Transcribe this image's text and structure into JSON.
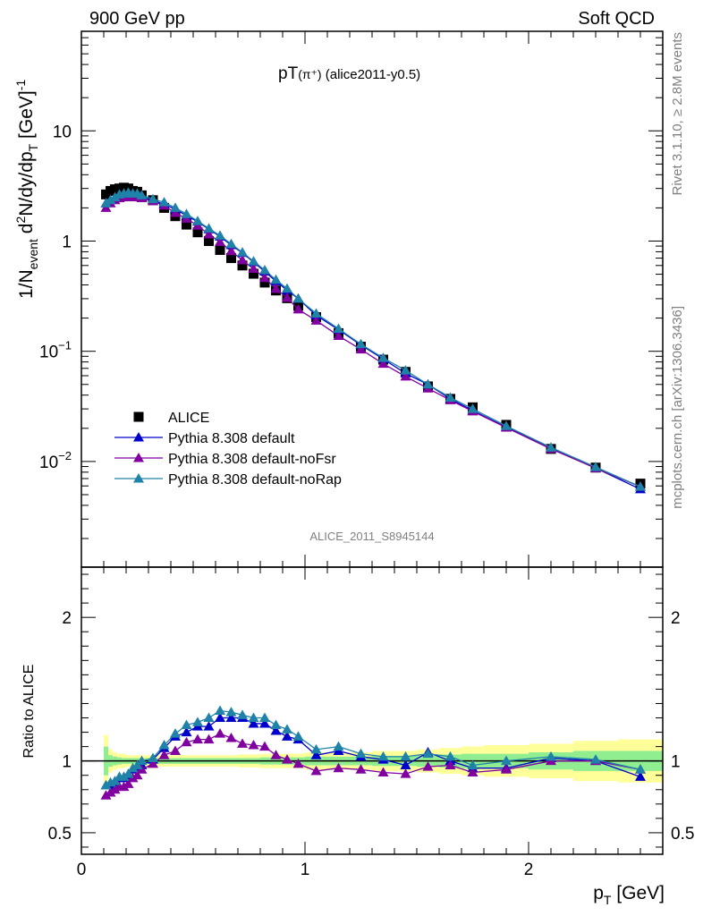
{
  "header": {
    "left": "900 GeV pp",
    "right": "Soft QCD"
  },
  "side": {
    "rivet": "Rivet 3.1.10, ≥ 2.8M events",
    "mcplots": "mcplots.cern.ch [arXiv:1306.3436]"
  },
  "analysis_tag": "ALICE_2011_S8945144",
  "chart_data": [
    {
      "type": "line",
      "panel": "main",
      "title": "pT(π⁺) (alice2011-y0.5)",
      "title_main": "pT",
      "title_sub": "(π⁺)",
      "title_tail": " (alice2011-y0.5)",
      "ylabel": "1/N_event d²N/dy/dp_T [GeV]⁻¹",
      "ylabel_parts": {
        "a": "1/N",
        "sub": "event",
        "b": " d",
        "sup2": "2",
        "c": "N/dy/dp",
        "subT": "T",
        "d": " [GeV]",
        "supm1": "-1"
      },
      "xlabel": "p_T [GeV]",
      "xlabel_parts": {
        "a": "p",
        "sub": "T",
        "b": " [GeV]"
      },
      "yscale": "log",
      "xlim": [
        0,
        2.6
      ],
      "ylim": [
        0.0011,
        80
      ],
      "y_ticks": [
        {
          "value": 0.01,
          "base": "10",
          "exp": "−2"
        },
        {
          "value": 0.1,
          "base": "10",
          "exp": "−1"
        },
        {
          "value": 1,
          "base": "1",
          "exp": ""
        },
        {
          "value": 10,
          "base": "10",
          "exp": ""
        }
      ],
      "x_ticks": [
        {
          "value": 0,
          "label": "0"
        },
        {
          "value": 1,
          "label": "1"
        },
        {
          "value": 2,
          "label": "2"
        }
      ],
      "legend_position": "bottom-left",
      "x": [
        0.11,
        0.13,
        0.15,
        0.17,
        0.19,
        0.21,
        0.23,
        0.25,
        0.27,
        0.32,
        0.37,
        0.42,
        0.47,
        0.52,
        0.57,
        0.62,
        0.67,
        0.72,
        0.77,
        0.82,
        0.87,
        0.92,
        0.97,
        1.05,
        1.15,
        1.25,
        1.35,
        1.45,
        1.55,
        1.65,
        1.75,
        1.9,
        2.1,
        2.3,
        2.5
      ],
      "series": [
        {
          "name": "ALICE",
          "marker": "square",
          "color": "#000000",
          "values": [
            2.65,
            2.85,
            2.95,
            3.0,
            3.05,
            3.0,
            2.85,
            2.8,
            2.6,
            2.35,
            2.0,
            1.68,
            1.41,
            1.2,
            1.0,
            0.83,
            0.7,
            0.6,
            0.505,
            0.42,
            0.356,
            0.303,
            0.258,
            0.204,
            0.146,
            0.11,
            0.084,
            0.065,
            0.048,
            0.037,
            0.031,
            0.0215,
            0.013,
            0.0088,
            0.0063
          ]
        },
        {
          "name": "Pythia 8.308 default",
          "marker": "triangle",
          "color": "#0000CC",
          "values": [
            2.2,
            2.35,
            2.45,
            2.6,
            2.65,
            2.65,
            2.65,
            2.6,
            2.5,
            2.35,
            2.15,
            1.95,
            1.7,
            1.5,
            1.28,
            1.1,
            0.92,
            0.78,
            0.645,
            0.53,
            0.432,
            0.358,
            0.3,
            0.212,
            0.157,
            0.114,
            0.085,
            0.063,
            0.05,
            0.037,
            0.029,
            0.0205,
            0.0132,
            0.0087,
            0.0056
          ]
        },
        {
          "name": "Pythia 8.308 default-noFsr",
          "marker": "triangle",
          "color": "#8000A0",
          "values": [
            2.0,
            2.2,
            2.35,
            2.45,
            2.5,
            2.5,
            2.5,
            2.5,
            2.45,
            2.3,
            2.1,
            1.8,
            1.6,
            1.38,
            1.15,
            0.98,
            0.81,
            0.67,
            0.56,
            0.462,
            0.369,
            0.306,
            0.24,
            0.19,
            0.138,
            0.104,
            0.077,
            0.059,
            0.046,
            0.036,
            0.0285,
            0.0203,
            0.013,
            0.0087,
            0.0059
          ]
        },
        {
          "name": "Pythia 8.308 default-noRap",
          "marker": "triangle",
          "color": "#1F82A8",
          "values": [
            2.2,
            2.35,
            2.5,
            2.65,
            2.7,
            2.75,
            2.7,
            2.7,
            2.6,
            2.4,
            2.25,
            2.0,
            1.76,
            1.52,
            1.3,
            1.12,
            0.94,
            0.79,
            0.655,
            0.544,
            0.445,
            0.37,
            0.3,
            0.22,
            0.16,
            0.116,
            0.087,
            0.067,
            0.05,
            0.038,
            0.03,
            0.021,
            0.0134,
            0.0089,
            0.0059
          ]
        }
      ]
    },
    {
      "type": "line",
      "panel": "ratio",
      "ylabel": "Ratio to ALICE",
      "xlim": [
        0,
        2.6
      ],
      "ylim": [
        0.35,
        2.35
      ],
      "y_ticks": [
        {
          "value": 0.5,
          "label": "0.5"
        },
        {
          "value": 1,
          "label": "1"
        },
        {
          "value": 2,
          "label": "2"
        }
      ],
      "x": [
        0.11,
        0.13,
        0.15,
        0.17,
        0.19,
        0.21,
        0.23,
        0.25,
        0.27,
        0.32,
        0.37,
        0.42,
        0.47,
        0.52,
        0.57,
        0.62,
        0.67,
        0.72,
        0.77,
        0.82,
        0.87,
        0.92,
        0.97,
        1.05,
        1.15,
        1.25,
        1.35,
        1.45,
        1.55,
        1.65,
        1.75,
        1.9,
        2.1,
        2.3,
        2.5
      ],
      "bands": {
        "stat_color": "#90EE90",
        "total_color": "#FFFF99",
        "edges": [
          0.1,
          0.12,
          0.14,
          0.16,
          0.18,
          0.2,
          0.22,
          0.24,
          0.26,
          0.3,
          0.35,
          0.4,
          0.45,
          0.5,
          0.55,
          0.6,
          0.65,
          0.7,
          0.75,
          0.8,
          0.85,
          0.9,
          0.95,
          1.0,
          1.1,
          1.2,
          1.3,
          1.4,
          1.5,
          1.6,
          1.7,
          1.8,
          2.0,
          2.2,
          2.4,
          2.6
        ],
        "total": [
          0.18,
          0.08,
          0.06,
          0.05,
          0.05,
          0.04,
          0.04,
          0.04,
          0.04,
          0.04,
          0.04,
          0.04,
          0.04,
          0.04,
          0.04,
          0.04,
          0.04,
          0.045,
          0.045,
          0.05,
          0.05,
          0.05,
          0.05,
          0.06,
          0.06,
          0.06,
          0.07,
          0.07,
          0.08,
          0.09,
          0.1,
          0.11,
          0.12,
          0.14,
          0.15
        ],
        "stat": [
          0.1,
          0.04,
          0.03,
          0.025,
          0.02,
          0.02,
          0.02,
          0.02,
          0.02,
          0.02,
          0.02,
          0.02,
          0.02,
          0.02,
          0.02,
          0.02,
          0.02,
          0.02,
          0.02,
          0.025,
          0.025,
          0.025,
          0.025,
          0.03,
          0.03,
          0.03,
          0.035,
          0.035,
          0.04,
          0.045,
          0.05,
          0.05,
          0.06,
          0.07,
          0.07
        ]
      },
      "series": [
        {
          "name": "Pythia 8.308 default",
          "marker": "triangle",
          "color": "#0000CC",
          "values": [
            0.83,
            0.83,
            0.85,
            0.88,
            0.88,
            0.9,
            0.94,
            0.96,
            0.97,
            1.01,
            1.09,
            1.17,
            1.2,
            1.24,
            1.24,
            1.3,
            1.3,
            1.3,
            1.26,
            1.26,
            1.21,
            1.17,
            1.15,
            1.04,
            1.07,
            1.03,
            1.01,
            0.97,
            1.06,
            1.0,
            0.95,
            0.95,
            1.02,
            1.0,
            0.89
          ]
        },
        {
          "name": "Pythia 8.308 default-noFsr",
          "marker": "triangle",
          "color": "#8000A0",
          "values": [
            0.76,
            0.78,
            0.8,
            0.82,
            0.82,
            0.84,
            0.88,
            0.9,
            0.94,
            0.98,
            1.04,
            1.07,
            1.13,
            1.15,
            1.15,
            1.19,
            1.16,
            1.12,
            1.11,
            1.1,
            1.04,
            1.01,
            0.98,
            0.93,
            0.95,
            0.94,
            0.92,
            0.91,
            0.96,
            0.97,
            0.92,
            0.94,
            1.0,
            1.0,
            0.94
          ]
        },
        {
          "name": "Pythia 8.308 default-noRap",
          "marker": "triangle",
          "color": "#1F82A8",
          "values": [
            0.83,
            0.85,
            0.86,
            0.89,
            0.89,
            0.91,
            0.95,
            0.97,
            1.0,
            1.02,
            1.11,
            1.19,
            1.25,
            1.27,
            1.3,
            1.35,
            1.34,
            1.32,
            1.3,
            1.3,
            1.25,
            1.22,
            1.17,
            1.08,
            1.1,
            1.05,
            1.03,
            1.03,
            1.05,
            1.03,
            0.97,
            1.0,
            1.03,
            1.01,
            0.94
          ]
        }
      ]
    }
  ]
}
